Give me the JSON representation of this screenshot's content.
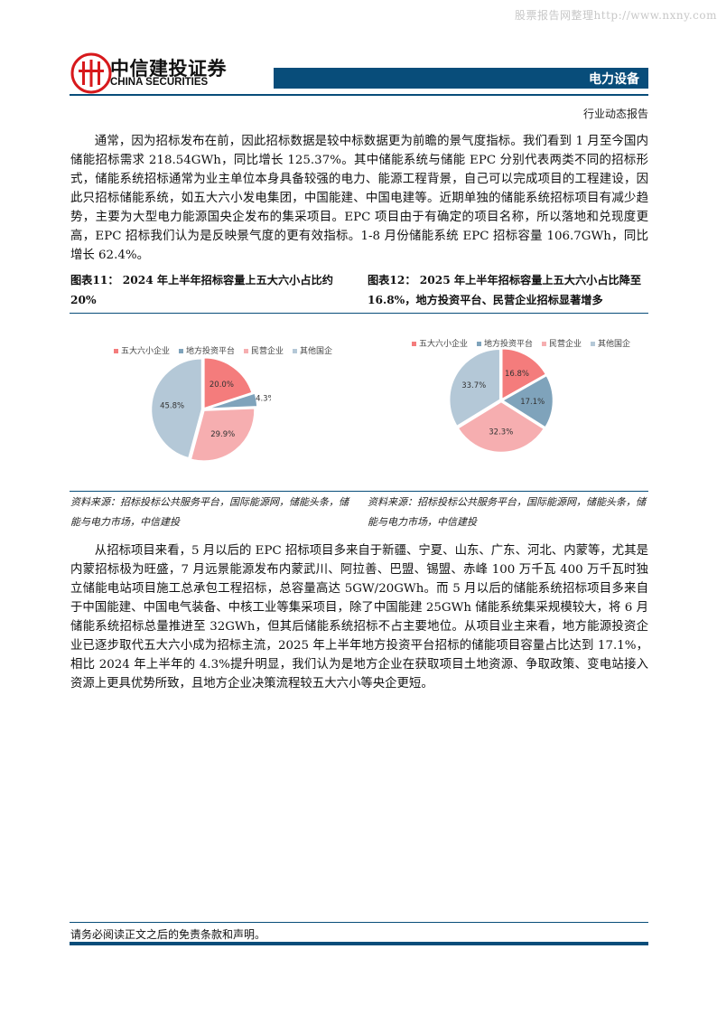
{
  "watermark": "股票报告网整理http://www.nxny.com",
  "header": {
    "logo_cn": "中信建投证券",
    "logo_en": "CHINA SECURITIES",
    "sector": "电力设备",
    "report_type": "行业动态报告",
    "brand_color": "#084d7a",
    "logo_color": "#d7191c"
  },
  "paragraphs": [
    "通常，因为招标发布在前，因此招标数据是较中标数据更为前瞻的景气度指标。我们看到 1 月至今国内储能招标需求 218.54GWh，同比增长 125.37%。其中储能系统与储能 EPC 分别代表两类不同的招标形式，储能系统招标通常为业主单位本身具备较强的电力、能源工程背景，自己可以完成项目的工程建设，因此只招标储能系统，如五大六小发电集团，中国能建、中国电建等。近期单独的储能系统招标项目有减少趋势，主要为大型电力能源国央企发布的集采项目。EPC 项目由于有确定的项目名称，所以落地和兑现度更高，EPC 招标我们认为是反映景气度的更有效指标。1-8 月份储能系统 EPC 招标容量 106.7GWh，同比增长 62.4%。",
    "从招标项目来看，5 月以后的 EPC 招标项目多来自于新疆、宁夏、山东、广东、河北、内蒙等，尤其是内蒙招标极为旺盛，7 月远景能源发布内蒙武川、阿拉善、巴盟、锡盟、赤峰 100 万千瓦 400 万千瓦时独立储能电站项目施工总承包工程招标，总容量高达 5GW/20GWh。而 5 月以后的储能系统招标项目多来自于中国能建、中国电气装备、中核工业等集采项目，除了中国能建 25GWh 储能系统集采规模较大，将 6 月储能系统招标总量推进至 32GWh，但其后储能系统招标不占主要地位。从项目业主来看，地方能源投资企业已逐步取代五大六小成为招标主流，2025 年上半年地方投资平台招标的储能项目容量占比达到 17.1%，相比 2024 年上半年的 4.3%提升明显，我们认为是地方企业在获取项目土地资源、争取政策、变电站接入资源上更具优势所致，且地方企业决策流程较五大六小等央企更短。"
  ],
  "figures": [
    {
      "title": "图表11：  2024 年上半年招标容量上五大六小占比约 20%",
      "source": "资料来源：招标投标公共服务平台，国际能源网，储能头条，储能与电力市场，中信建投"
    },
    {
      "title": "图表12：  2025 年上半年招标容量上五大六小占比降至 16.8%，地方投资平台、民营企业招标显著增多",
      "source": "资料来源：招标投标公共服务平台，国际能源网，储能头条，储能与电力市场，中信建投"
    }
  ],
  "chart_data": [
    {
      "type": "pie",
      "categories": [
        "五大六小企业",
        "地方投资平台",
        "民营企业",
        "其他国企"
      ],
      "values": [
        20.0,
        4.3,
        29.9,
        45.8
      ],
      "labels": [
        "20.0%",
        "4.3%",
        "29.9%",
        "45.8%"
      ],
      "colors": [
        "#f47c7c",
        "#7fa3bb",
        "#f6aeb0",
        "#b4c8d7"
      ],
      "legend": "top"
    },
    {
      "type": "pie",
      "categories": [
        "五大六小企业",
        "地方投资平台",
        "民营企业",
        "其他国企"
      ],
      "values": [
        16.8,
        17.1,
        32.3,
        33.7
      ],
      "labels": [
        "16.8%",
        "17.1%",
        "32.3%",
        "33.7%"
      ],
      "colors": [
        "#f47c7c",
        "#7fa3bb",
        "#f6aeb0",
        "#b4c8d7"
      ],
      "legend": "top"
    }
  ],
  "footer": {
    "disclaimer": "请务必阅读正文之后的免责条款和声明。"
  }
}
